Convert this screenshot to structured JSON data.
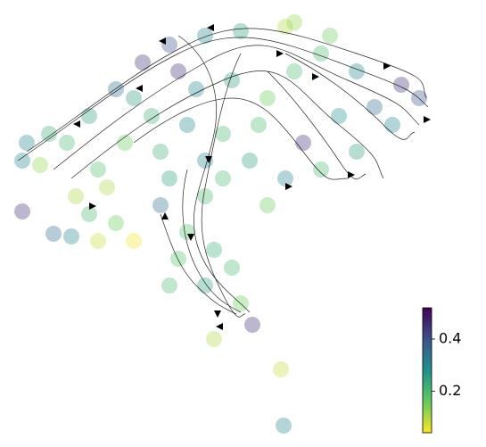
{
  "chart_data": {
    "type": "scatter",
    "x": [
      10,
      30,
      60,
      85,
      115,
      145,
      175,
      215,
      255,
      305,
      345,
      385,
      435,
      455,
      425,
      385,
      345,
      305,
      265,
      235,
      195,
      155,
      125,
      95,
      70,
      175,
      215,
      195,
      225,
      245,
      215,
      255,
      175,
      185,
      165,
      115,
      95,
      65,
      45,
      10,
      105,
      225,
      268,
      300,
      303,
      325,
      285,
      315,
      245,
      205,
      135,
      185,
      405,
      365,
      275,
      135,
      85,
      285,
      235,
      215,
      165,
      40,
      15,
      355,
      315
    ],
    "y": [
      305,
      300,
      325,
      355,
      385,
      415,
      435,
      445,
      450,
      455,
      425,
      405,
      390,
      375,
      345,
      315,
      295,
      285,
      305,
      335,
      345,
      355,
      325,
      295,
      265,
      285,
      265,
      225,
      205,
      185,
      165,
      145,
      165,
      195,
      255,
      235,
      215,
      220,
      223,
      248,
      275,
      105,
      121,
      71,
      8,
      325,
      375,
      405,
      395,
      385,
      375,
      405,
      365,
      355,
      345,
      215,
      245,
      255,
      285,
      305,
      315,
      335,
      325,
      445,
      460
    ],
    "values": [
      0.3,
      0.12,
      0.2,
      0.25,
      0.35,
      0.45,
      0.4,
      0.3,
      0.25,
      0.1,
      0.2,
      0.3,
      0.45,
      0.4,
      0.3,
      0.25,
      0.2,
      0.3,
      0.25,
      0.2,
      0.3,
      0.22,
      0.15,
      0.18,
      0.1,
      0.25,
      0.2,
      0.18,
      0.22,
      0.2,
      0.25,
      0.15,
      0.2,
      0.18,
      0.35,
      0.15,
      0.08,
      0.3,
      0.35,
      0.45,
      0.1,
      0.1,
      0.45,
      0.08,
      0.3,
      0.45,
      0.15,
      0.2,
      0.25,
      0.3,
      0.25,
      0.45,
      0.35,
      0.28,
      0.2,
      0.05,
      0.2,
      0.15,
      0.2,
      0.3,
      0.22,
      0.22,
      0.3,
      0.15,
      0.12
    ],
    "xlim": [
      0,
      470
    ],
    "ylim": [
      0,
      470
    ],
    "colormap": "viridis",
    "reverse_colormap": true,
    "clim": [
      0.04,
      0.52
    ],
    "cticks": [
      0.2,
      0.4
    ]
  }
}
